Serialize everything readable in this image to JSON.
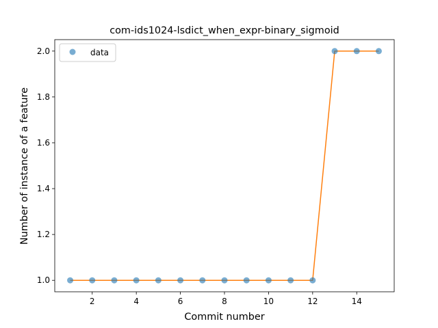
{
  "chart_data": {
    "type": "scatter",
    "title": "com-ids1024-lsdict_when_expr-binary_sigmoid",
    "xlabel": "Commit number",
    "ylabel": "Number of instance of a feature",
    "xlim": [
      0.3,
      15.7
    ],
    "ylim": [
      0.95,
      2.05
    ],
    "x_ticks": [
      2,
      4,
      6,
      8,
      10,
      12,
      14
    ],
    "x_tick_labels": [
      "2",
      "4",
      "6",
      "8",
      "10",
      "12",
      "14"
    ],
    "y_ticks": [
      1.0,
      1.2,
      1.4,
      1.6,
      1.8,
      2.0
    ],
    "y_tick_labels": [
      "1.0",
      "1.2",
      "1.4",
      "1.6",
      "1.8",
      "2.0"
    ],
    "grid": false,
    "legend": {
      "position": "top-left",
      "entries": [
        "data"
      ]
    },
    "series": [
      {
        "name": "data",
        "style": "markers",
        "color": "#1f77b4",
        "x": [
          1,
          2,
          3,
          4,
          5,
          6,
          7,
          8,
          9,
          10,
          11,
          12,
          13,
          14,
          15
        ],
        "y": [
          1,
          1,
          1,
          1,
          1,
          1,
          1,
          1,
          1,
          1,
          1,
          1,
          2,
          2,
          2
        ]
      },
      {
        "style": "line",
        "color": "#ff7f0e",
        "x": [
          1,
          2,
          3,
          4,
          5,
          6,
          7,
          8,
          9,
          10,
          11,
          12,
          13,
          14,
          15
        ],
        "y": [
          1,
          1,
          1,
          1,
          1,
          1,
          1,
          1,
          1,
          1,
          1,
          1,
          2,
          2,
          2
        ]
      }
    ]
  }
}
